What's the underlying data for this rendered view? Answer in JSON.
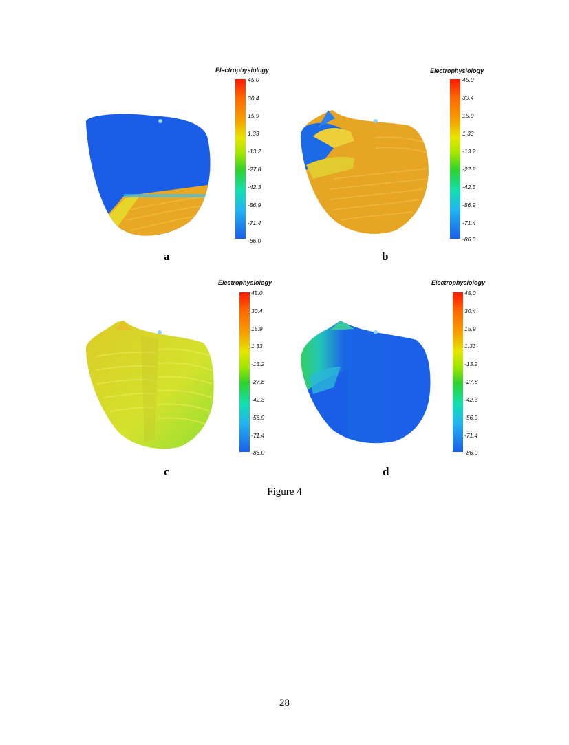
{
  "figure": {
    "caption": "Figure 4",
    "page_number": "28",
    "panels": [
      {
        "letter": "a",
        "colorbar": {
          "title": "Electrophysiology",
          "ticks": [
            "45.0",
            "30.4",
            "15.9",
            "1.33",
            "-13.2",
            "-27.8",
            "-42.3",
            "-56.9",
            "-71.4",
            "-86.0"
          ]
        }
      },
      {
        "letter": "b",
        "colorbar": {
          "title": "Electrophysiology",
          "ticks": [
            "45.0",
            "30.4",
            "15.9",
            "1.33",
            "-13.2",
            "-27.8",
            "-42.3",
            "-56.9",
            "-71.4",
            "-86.0"
          ]
        }
      },
      {
        "letter": "c",
        "colorbar": {
          "title": "Electrophysiology",
          "ticks": [
            "45.0",
            "30.4",
            "15.9",
            "1.33",
            "-13.2",
            "-27.8",
            "-42.3",
            "-56.9",
            "-71.4",
            "-86.0"
          ]
        }
      },
      {
        "letter": "d",
        "colorbar": {
          "title": "Electrophysiology",
          "ticks": [
            "45.0",
            "30.4",
            "15.9",
            "1.33",
            "-13.2",
            "-27.8",
            "-42.3",
            "-56.9",
            "-71.4",
            "-86.0"
          ]
        }
      }
    ]
  },
  "colors": {
    "resting_blue": "#1a5ee8",
    "depolarized_orange": "#eaa520",
    "repolarizing_yellow": "#d8e02a",
    "green": "#38d13a"
  }
}
